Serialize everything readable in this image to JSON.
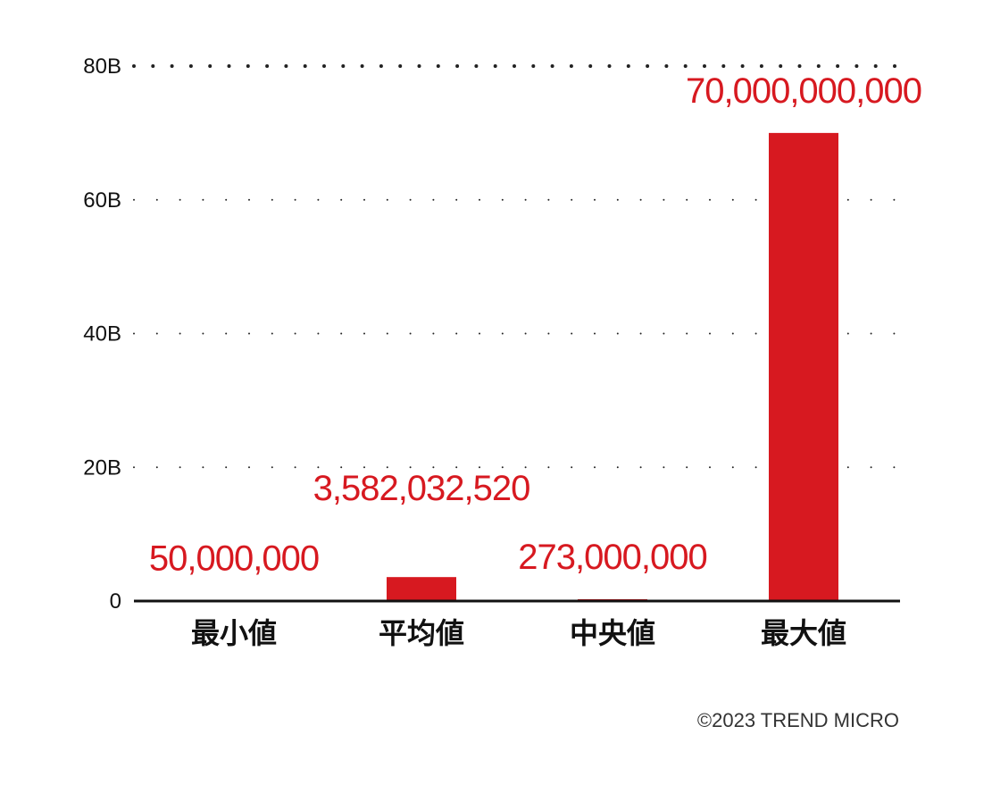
{
  "chart_data": {
    "type": "bar",
    "categories": [
      "最小値",
      "平均値",
      "中央値",
      "最大値"
    ],
    "values": [
      50000000,
      3582032520,
      273000000,
      70000000000
    ],
    "data_labels": [
      "50,000,000",
      "3,582,032,520",
      "273,000,000",
      "70,000,000,000"
    ],
    "ylim": [
      0,
      80000000000
    ],
    "y_ticks": [
      0,
      20000000000,
      40000000000,
      60000000000,
      80000000000
    ],
    "y_tick_labels": [
      "0",
      "20B",
      "40B",
      "60B",
      "80B"
    ],
    "title": "",
    "xlabel": "",
    "ylabel": "",
    "grid": "dotted horizontal",
    "legend": "none"
  },
  "colors": {
    "bar": "#d71920",
    "data_label": "#d71920",
    "axis": "#111111",
    "grid": "#222222"
  },
  "footer": {
    "copyright": "©2023 TREND MICRO"
  }
}
